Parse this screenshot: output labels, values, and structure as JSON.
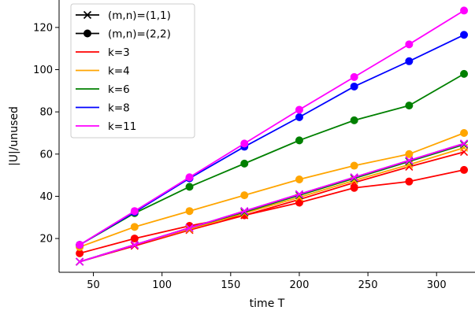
{
  "chart_data": {
    "type": "line",
    "title": "",
    "xlabel": "time T",
    "ylabel": "|U|/unused",
    "xlim": [
      25,
      328
    ],
    "ylim": [
      4,
      133
    ],
    "xticks": [
      50,
      100,
      150,
      200,
      250,
      300
    ],
    "yticks": [
      20,
      40,
      60,
      80,
      100,
      120
    ],
    "grid": false,
    "legend_position": "top-left",
    "x": [
      40,
      80,
      120,
      160,
      200,
      240,
      280,
      320
    ],
    "legend": [
      {
        "label": "(m,n)=(1,1)",
        "marker": "x",
        "color": "#000000"
      },
      {
        "label": "(m,n)=(2,2)",
        "marker": "o",
        "color": "#000000"
      },
      {
        "label": "k=3",
        "color": "#ff0000"
      },
      {
        "label": "k=4",
        "color": "#ffa500"
      },
      {
        "label": "k=6",
        "color": "#008000"
      },
      {
        "label": "k=8",
        "color": "#0000ff"
      },
      {
        "label": "k=11",
        "color": "#ff00ff"
      }
    ],
    "series": [
      {
        "k": "k=3",
        "mn": "(m,n)=(1,1)",
        "marker": "x",
        "color": "#ff0000",
        "values": [
          9,
          16.5,
          24,
          31,
          38.5,
          46.5,
          54,
          61
        ]
      },
      {
        "k": "k=3",
        "mn": "(m,n)=(2,2)",
        "marker": "o",
        "color": "#ff0000",
        "values": [
          13,
          20,
          26,
          31,
          37,
          44,
          47,
          52.5
        ]
      },
      {
        "k": "k=4",
        "mn": "(m,n)=(1,1)",
        "marker": "x",
        "color": "#ffa500",
        "values": [
          9,
          17,
          24.5,
          32,
          39.5,
          47.5,
          55,
          63
        ]
      },
      {
        "k": "k=4",
        "mn": "(m,n)=(2,2)",
        "marker": "o",
        "color": "#ffa500",
        "values": [
          16,
          25.5,
          33,
          40.5,
          48,
          54.5,
          60,
          70
        ]
      },
      {
        "k": "k=6",
        "mn": "(m,n)=(1,1)",
        "marker": "x",
        "color": "#008000",
        "values": [
          9,
          17,
          25,
          32.5,
          40.5,
          48.5,
          56.5,
          64.5
        ]
      },
      {
        "k": "k=6",
        "mn": "(m,n)=(2,2)",
        "marker": "o",
        "color": "#008000",
        "values": [
          17,
          32,
          44.5,
          55.5,
          66.5,
          76,
          83,
          98
        ]
      },
      {
        "k": "k=8",
        "mn": "(m,n)=(1,1)",
        "marker": "x",
        "color": "#0000ff",
        "values": [
          9,
          17,
          25,
          33,
          41,
          49,
          57,
          65
        ]
      },
      {
        "k": "k=8",
        "mn": "(m,n)=(2,2)",
        "marker": "o",
        "color": "#0000ff",
        "values": [
          17,
          32.5,
          48.5,
          63.5,
          77.5,
          92,
          104,
          116.5
        ]
      },
      {
        "k": "k=11",
        "mn": "(m,n)=(1,1)",
        "marker": "x",
        "color": "#ff00ff",
        "values": [
          9,
          17,
          25,
          33,
          41,
          49,
          57,
          65
        ]
      },
      {
        "k": "k=11",
        "mn": "(m,n)=(2,2)",
        "marker": "o",
        "color": "#ff00ff",
        "values": [
          17,
          33,
          49,
          65,
          81,
          96.5,
          112,
          128
        ]
      }
    ]
  }
}
